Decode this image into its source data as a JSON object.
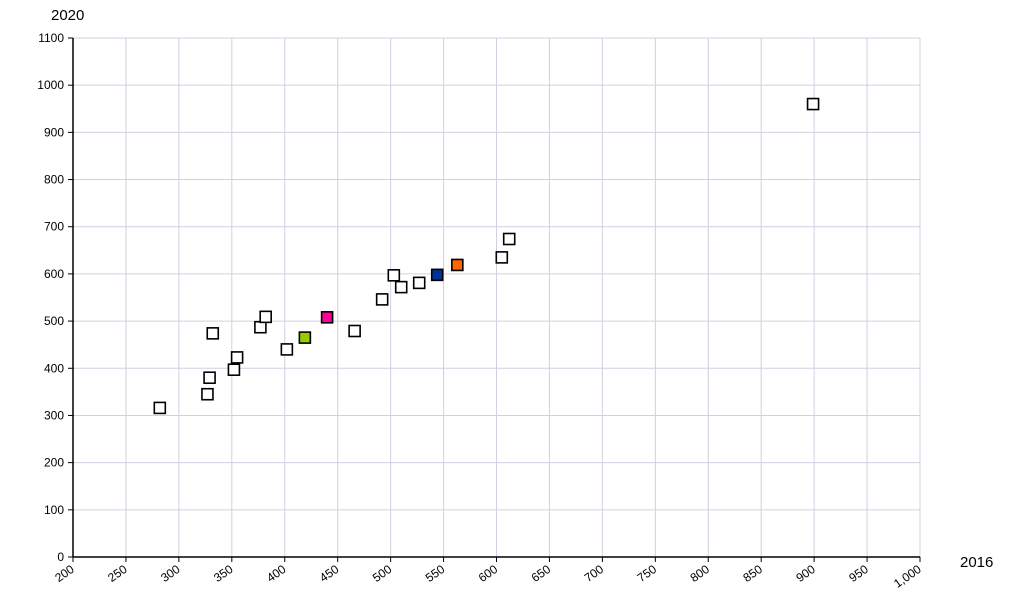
{
  "chart_data": {
    "type": "scatter",
    "title": "",
    "xlabel": "2016",
    "ylabel": "2020",
    "xlim": [
      200,
      1000
    ],
    "ylim": [
      0,
      1100
    ],
    "x_ticks": [
      "200",
      "250",
      "300",
      "350",
      "400",
      "450",
      "500",
      "550",
      "600",
      "650",
      "700",
      "750",
      "800",
      "850",
      "900",
      "950",
      "1,000"
    ],
    "x_tick_values": [
      200,
      250,
      300,
      350,
      400,
      450,
      500,
      550,
      600,
      650,
      700,
      750,
      800,
      850,
      900,
      950,
      1000
    ],
    "y_ticks": [
      "0",
      "100",
      "200",
      "300",
      "400",
      "500",
      "600",
      "700",
      "800",
      "900",
      "1000",
      "1100"
    ],
    "y_tick_values": [
      0,
      100,
      200,
      300,
      400,
      500,
      600,
      700,
      800,
      900,
      1000,
      1100
    ],
    "grid": true,
    "series": [
      {
        "marker": "square-outline",
        "color": "#ffffff",
        "points": [
          {
            "x": 282,
            "y": 316
          },
          {
            "x": 327,
            "y": 345
          },
          {
            "x": 329,
            "y": 380
          },
          {
            "x": 332,
            "y": 474
          },
          {
            "x": 352,
            "y": 397
          },
          {
            "x": 355,
            "y": 423
          },
          {
            "x": 377,
            "y": 487
          },
          {
            "x": 382,
            "y": 509
          },
          {
            "x": 402,
            "y": 440
          },
          {
            "x": 466,
            "y": 479
          },
          {
            "x": 492,
            "y": 546
          },
          {
            "x": 503,
            "y": 597
          },
          {
            "x": 510,
            "y": 572
          },
          {
            "x": 527,
            "y": 581
          },
          {
            "x": 605,
            "y": 635
          },
          {
            "x": 612,
            "y": 674
          },
          {
            "x": 899,
            "y": 960
          }
        ]
      },
      {
        "marker": "square",
        "color": "#ff0099",
        "points": [
          {
            "x": 440,
            "y": 508
          }
        ]
      },
      {
        "marker": "square",
        "color": "#99cc00",
        "points": [
          {
            "x": 419,
            "y": 465
          }
        ]
      },
      {
        "marker": "square",
        "color": "#003399",
        "points": [
          {
            "x": 544,
            "y": 598
          }
        ]
      },
      {
        "marker": "square",
        "color": "#ff6600",
        "points": [
          {
            "x": 563,
            "y": 619
          }
        ]
      }
    ]
  }
}
